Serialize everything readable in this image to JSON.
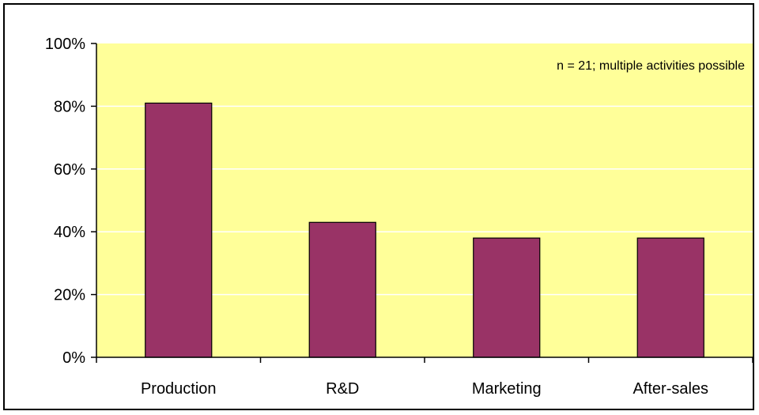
{
  "chart_data": {
    "type": "bar",
    "categories": [
      "Production",
      "R&D",
      "Marketing",
      "After-sales"
    ],
    "values": [
      81,
      43,
      38,
      38
    ],
    "value_unit": "%",
    "ylim": [
      0,
      100
    ],
    "yticks": [
      0,
      20,
      40,
      60,
      80,
      100
    ],
    "ytick_labels": [
      "0%",
      "20%",
      "40%",
      "60%",
      "80%",
      "100%"
    ],
    "title": "",
    "xlabel": "",
    "ylabel": "",
    "annotation": "n = 21; multiple activities possible",
    "grid": true,
    "legend": "none",
    "colors": {
      "bar_fill": "#993366",
      "plot_background": "#FFFF99",
      "grid_line": "#FFFFFF",
      "axis": "#000000"
    }
  }
}
